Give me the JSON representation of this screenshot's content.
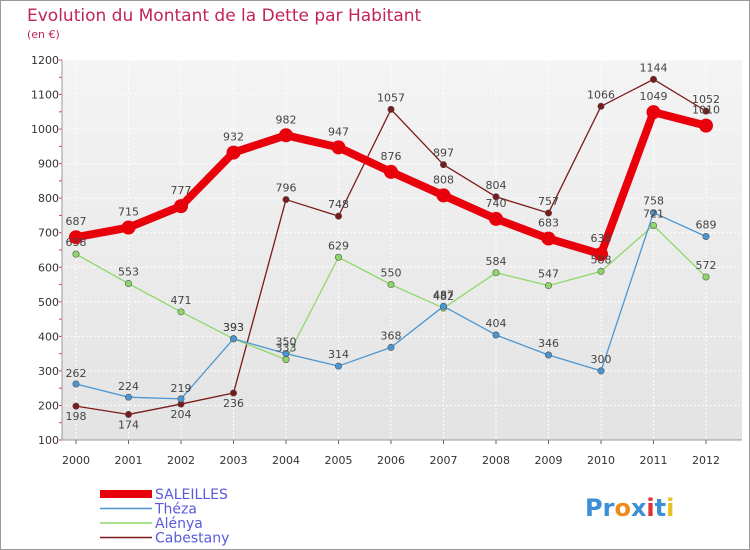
{
  "chart_data": {
    "type": "line",
    "title": "Evolution du Montant de la Dette par Habitant",
    "subtitle": "(en €)",
    "xlabel": "",
    "ylabel": "",
    "x": [
      "2000",
      "2001",
      "2002",
      "2003",
      "2004",
      "2005",
      "2006",
      "2007",
      "2008",
      "2009",
      "2010",
      "2011",
      "2012"
    ],
    "yticks": [
      "1200",
      "1100",
      "1000",
      "900",
      "800",
      "700",
      "600",
      "500",
      "400",
      "300",
      "200",
      "100"
    ],
    "ylim": [
      100,
      1200
    ],
    "grid": true,
    "legend_position": "bottom-left",
    "series": [
      {
        "name": "SALEILLES",
        "color": "#e8000b",
        "values": [
          687,
          715,
          777,
          932,
          982,
          947,
          876,
          808,
          740,
          683,
          638,
          1049,
          1010
        ]
      },
      {
        "name": "Théza",
        "color": "#4b96d2",
        "values": [
          262,
          224,
          219,
          393,
          350,
          314,
          368,
          487,
          404,
          346,
          300,
          758,
          689
        ]
      },
      {
        "name": "Alénya",
        "color": "#8ed86a",
        "values": [
          638,
          553,
          471,
          393,
          333,
          629,
          550,
          482,
          584,
          547,
          588,
          721,
          572
        ]
      },
      {
        "name": "Cabestany",
        "color": "#7b1a1a",
        "values": [
          198,
          174,
          204,
          236,
          796,
          748,
          1057,
          897,
          804,
          757,
          1066,
          1144,
          1052
        ]
      }
    ],
    "data_labels": [
      [
        "687",
        "715",
        "777",
        "932",
        "982",
        "947",
        "876",
        "808",
        "740",
        "683",
        "638",
        "1049",
        "1010"
      ],
      [
        "262",
        "224",
        "219",
        "393",
        "350",
        "314",
        "368",
        "487",
        "404",
        "346",
        "300",
        "758",
        "689"
      ],
      [
        "638",
        "553",
        "471",
        "393",
        "333",
        "629",
        "550",
        "482",
        "584",
        "547",
        "588",
        "721",
        "572"
      ],
      [
        "198",
        "174",
        "204",
        "236",
        "796",
        "748",
        "1057",
        "897",
        "804",
        "757",
        "1066",
        "1144",
        "1052"
      ]
    ]
  },
  "logo": {
    "text": "Proxiti",
    "letters": [
      "P",
      "r",
      "o",
      "x",
      "i",
      "t",
      "i"
    ],
    "colors": [
      "#3a8fd6",
      "#3a8fd6",
      "#f08a1c",
      "#3a8fd6",
      "#e03030",
      "#3a8fd6",
      "#e8c020"
    ]
  }
}
